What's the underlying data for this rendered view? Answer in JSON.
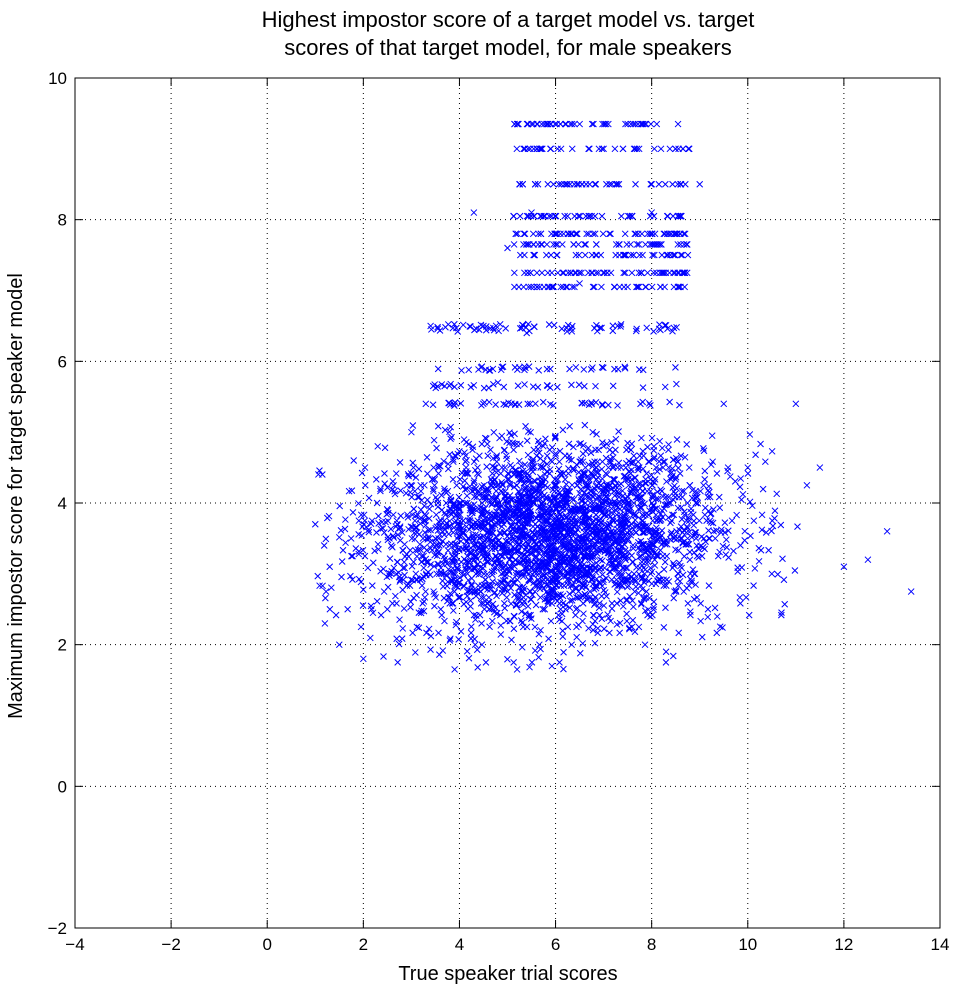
{
  "chart_data": {
    "type": "scatter",
    "title": [
      "Highest impostor score of a target model vs. target",
      "scores of that target model, for male speakers"
    ],
    "xlabel": "True speaker trial scores",
    "ylabel": "Maximum impostor score for target speaker model",
    "xlim": [
      -4,
      14
    ],
    "ylim": [
      -2,
      10
    ],
    "xticks": [
      -4,
      -2,
      0,
      2,
      4,
      6,
      8,
      10,
      12,
      14
    ],
    "yticks": [
      -2,
      0,
      2,
      4,
      6,
      8,
      10
    ],
    "xtick_labels": [
      "−4",
      "−2",
      "0",
      "2",
      "4",
      "6",
      "8",
      "10",
      "12",
      "14"
    ],
    "ytick_labels": [
      "−2",
      "0",
      "2",
      "4",
      "6",
      "8",
      "10"
    ],
    "grid": true,
    "marker": "x",
    "color": "#0000ff",
    "series": [
      {
        "points_sample": [
          [
            1.0,
            3.7
          ],
          [
            1.2,
            2.3
          ],
          [
            1.3,
            3.1
          ],
          [
            1.5,
            2.0
          ],
          [
            1.8,
            4.6
          ],
          [
            2.0,
            1.8
          ],
          [
            2.3,
            4.8
          ],
          [
            2.5,
            2.5
          ],
          [
            3.0,
            5.0
          ],
          [
            3.3,
            5.4
          ],
          [
            3.4,
            6.5
          ],
          [
            3.9,
            1.65
          ],
          [
            4.3,
            8.1
          ],
          [
            4.5,
            6.5
          ],
          [
            4.8,
            5.7
          ],
          [
            5.0,
            7.6
          ],
          [
            5.2,
            1.65
          ],
          [
            5.4,
            6.4
          ],
          [
            5.5,
            8.1
          ],
          [
            5.5,
            9.35
          ],
          [
            6.0,
            7.8
          ],
          [
            6.2,
            9.35
          ],
          [
            6.5,
            7.1
          ],
          [
            7.0,
            9.0
          ],
          [
            7.5,
            9.35
          ],
          [
            7.8,
            9.35
          ],
          [
            8.0,
            8.1
          ],
          [
            8.3,
            1.9
          ],
          [
            8.6,
            8.5
          ],
          [
            9.0,
            8.5
          ],
          [
            9.5,
            5.4
          ],
          [
            10.0,
            4.5
          ],
          [
            10.5,
            3.0
          ],
          [
            11.0,
            5.4
          ],
          [
            11.5,
            4.5
          ],
          [
            12.0,
            3.1
          ],
          [
            12.5,
            3.2
          ],
          [
            12.9,
            3.6
          ],
          [
            13.4,
            2.75
          ]
        ],
        "main_cluster": {
          "x_mean": 5.8,
          "x_sd": 1.8,
          "y_mean": 3.55,
          "y_sd": 0.65,
          "x_range": [
            1.0,
            13.4
          ],
          "y_range": [
            1.65,
            5.1
          ]
        },
        "upper_band": {
          "x_range": [
            4.5,
            9.2
          ],
          "y_range": [
            7.0,
            9.35
          ]
        },
        "middle_band": {
          "x_range": [
            3.4,
            8.6
          ],
          "y_range": [
            5.3,
            6.5
          ]
        }
      }
    ]
  }
}
